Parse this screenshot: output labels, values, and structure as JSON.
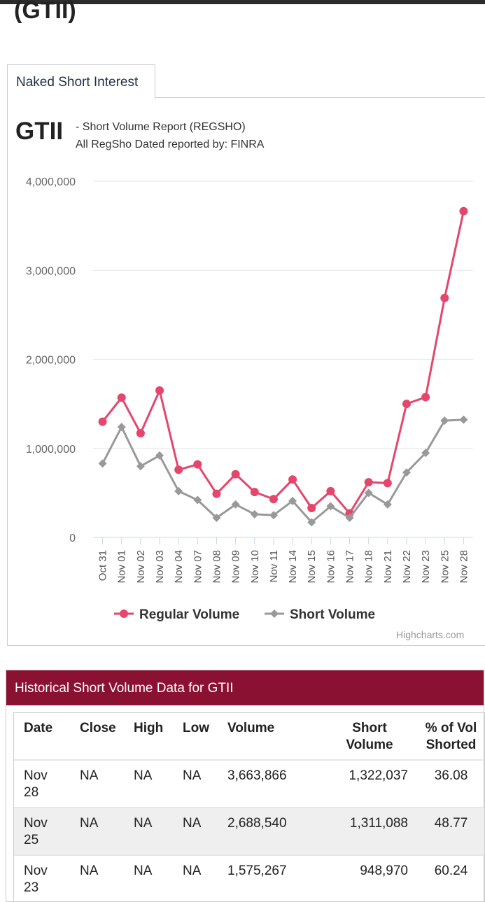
{
  "page": {
    "title": "(GTII)",
    "tab_label": "Naked Short Interest"
  },
  "chart_header": {
    "ticker": "GTII",
    "subtitle_line1": "- Short Volume Report  (REGSHO)",
    "subtitle_line2": "All RegSho Dated reported by: FINRA"
  },
  "credits": "Highcharts.com",
  "colors": {
    "regular": "#e5466c",
    "short": "#999999",
    "table_header": "#8a1131"
  },
  "chart_data": {
    "type": "line",
    "categories": [
      "Oct 31",
      "Nov 01",
      "Nov 02",
      "Nov 03",
      "Nov 04",
      "Nov 07",
      "Nov 08",
      "Nov 09",
      "Nov 10",
      "Nov 11",
      "Nov 14",
      "Nov 15",
      "Nov 16",
      "Nov 17",
      "Nov 18",
      "Nov 21",
      "Nov 22",
      "Nov 23",
      "Nov 25",
      "Nov 28"
    ],
    "series": [
      {
        "name": "Regular Volume",
        "marker": "circle",
        "color": "#e5466c",
        "values": [
          1300000,
          1570000,
          1170000,
          1650000,
          760000,
          820000,
          490000,
          710000,
          510000,
          430000,
          650000,
          330000,
          520000,
          270000,
          620000,
          610000,
          1500000,
          1575267,
          2688540,
          3663866
        ]
      },
      {
        "name": "Short Volume",
        "marker": "diamond",
        "color": "#999999",
        "values": [
          830000,
          1240000,
          800000,
          920000,
          520000,
          420000,
          220000,
          370000,
          260000,
          250000,
          410000,
          170000,
          350000,
          220000,
          500000,
          370000,
          730000,
          948970,
          1311088,
          1322037
        ]
      }
    ],
    "yticks": [
      "4,000,000",
      "3,000,000",
      "2,000,000",
      "1,000,000",
      "0"
    ],
    "ytick_values": [
      4000000,
      3000000,
      2000000,
      1000000,
      0
    ],
    "ylim": [
      0,
      4000000
    ],
    "grid": true,
    "legend": "bottom-center"
  },
  "table": {
    "title": "Historical Short Volume Data for GTII",
    "headers": [
      "Date",
      "Close",
      "High",
      "Low",
      "Volume",
      "Short Volume",
      "% of Vol Shorted"
    ],
    "rows": [
      {
        "date": "Nov 28",
        "close": "NA",
        "high": "NA",
        "low": "NA",
        "volume": "3,663,866",
        "short": "1,322,037",
        "pct": "36.08"
      },
      {
        "date": "Nov 25",
        "close": "NA",
        "high": "NA",
        "low": "NA",
        "volume": "2,688,540",
        "short": "1,311,088",
        "pct": "48.77"
      },
      {
        "date": "Nov 23",
        "close": "NA",
        "high": "NA",
        "low": "NA",
        "volume": "1,575,267",
        "short": "948,970",
        "pct": "60.24"
      }
    ]
  }
}
